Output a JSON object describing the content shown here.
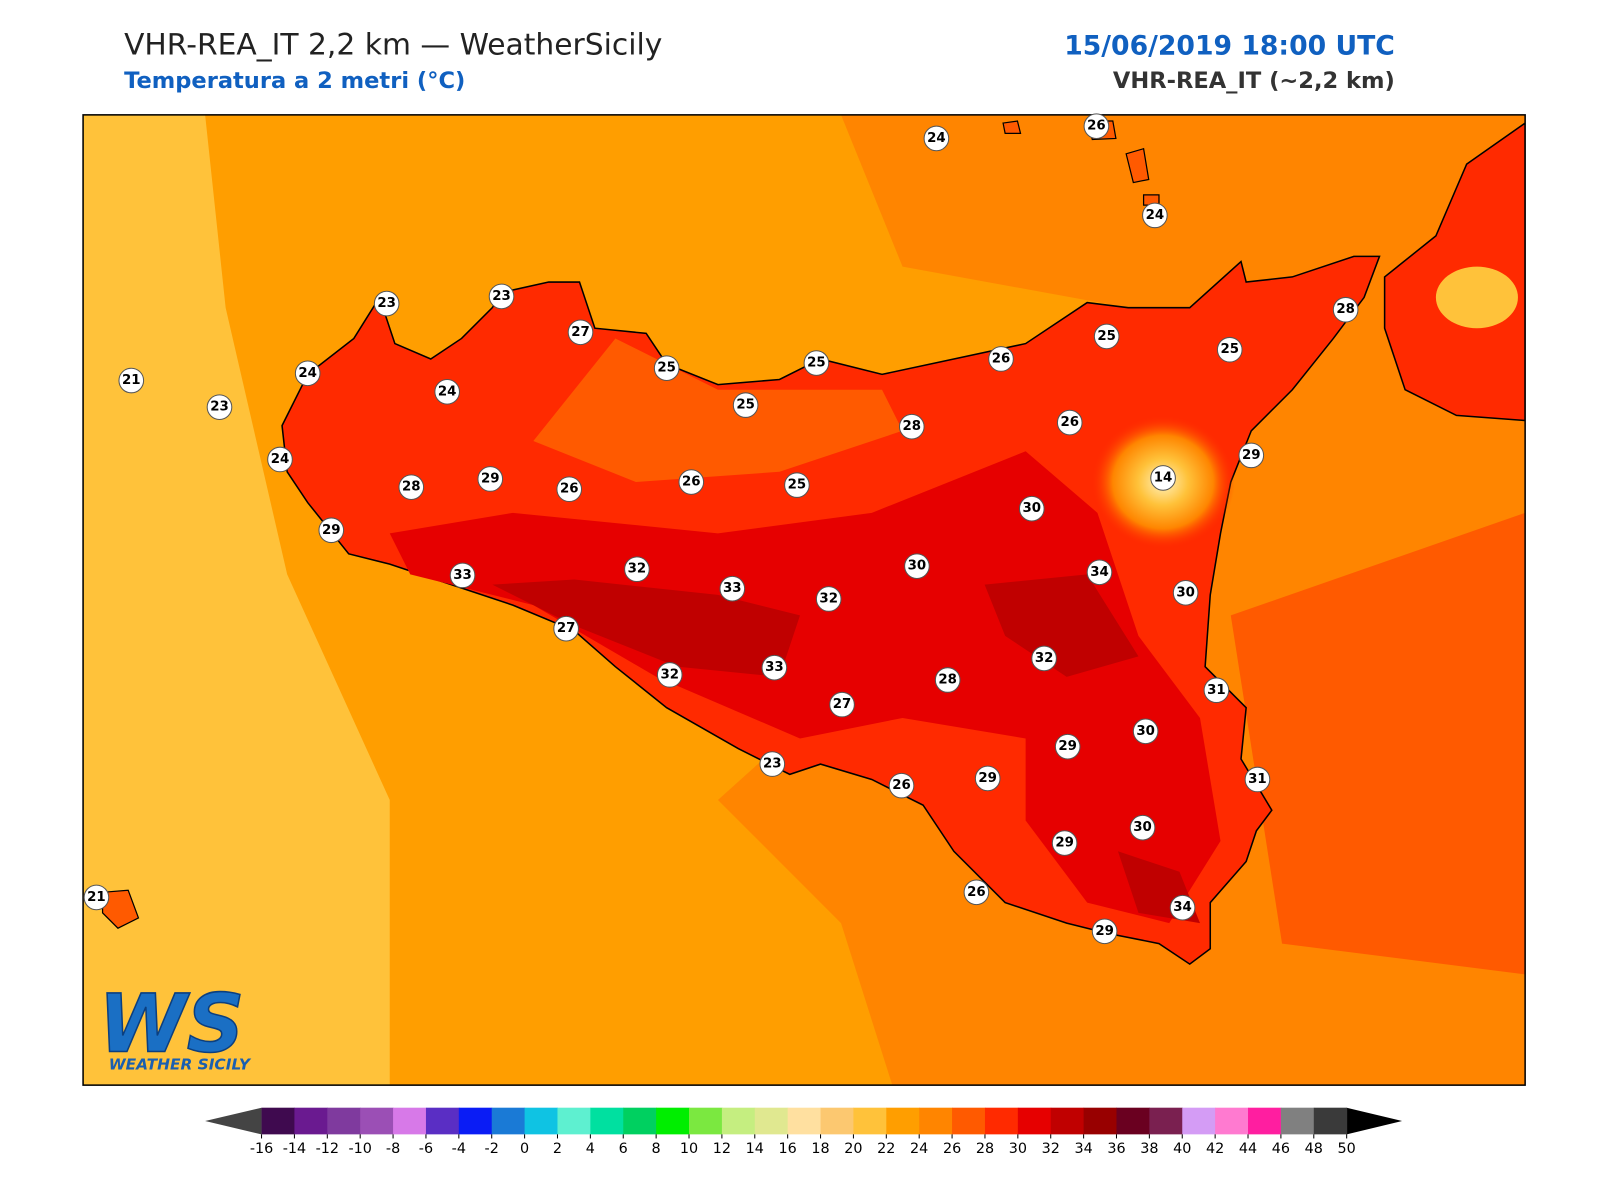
{
  "header": {
    "title": "VHR-REA_IT 2,2 km — WeatherSicily",
    "subtitle": "Temperatura a 2 metri (°C)",
    "date": "15/06/2019 18:00 UTC",
    "model": "VHR-REA_IT (~2,2 km)"
  },
  "stations": [
    24,
    26,
    24,
    23,
    23,
    27,
    25,
    25,
    26,
    25,
    25,
    28,
    21,
    24,
    24,
    23,
    25,
    28,
    26,
    24,
    29,
    14,
    28,
    29,
    26,
    26,
    25,
    30,
    29,
    30,
    33,
    32,
    33,
    32,
    34,
    30,
    27,
    32,
    32,
    33,
    28,
    31,
    27,
    29,
    30,
    23,
    29,
    31,
    26,
    30,
    29,
    26,
    34,
    29,
    21
  ],
  "colorbar": {
    "ticks": [
      -16,
      -14,
      -12,
      -10,
      -8,
      -6,
      -4,
      -2,
      0,
      2,
      4,
      6,
      8,
      10,
      12,
      14,
      16,
      18,
      20,
      22,
      24,
      26,
      28,
      30,
      32,
      34,
      36,
      38,
      40,
      42,
      44,
      46,
      48,
      50
    ],
    "colors": [
      "#3f0a4f",
      "#6a1a90",
      "#7f3a9e",
      "#9b4fb5",
      "#d779e8",
      "#5a2ec4",
      "#0a1cf5",
      "#1a7ad6",
      "#0fc3e3",
      "#5ef0d0",
      "#00e0a0",
      "#00d060",
      "#00ee00",
      "#7be840",
      "#c5ee80",
      "#e0e890",
      "#ffe0a0",
      "#fcc870",
      "#ffc23a",
      "#ff9e00",
      "#ff8500",
      "#ff5a00",
      "#ff2a00",
      "#e60000",
      "#c00000",
      "#980000",
      "#6a0020",
      "#7a2050",
      "#d49cf5",
      "#ff7ad0",
      "#ff1ea0",
      "#808080",
      "#3a3a3a"
    ],
    "under_color": "#444444",
    "over_color": "#000000"
  },
  "logo": {
    "letters": "WS",
    "text": "WEATHER SICILY"
  }
}
